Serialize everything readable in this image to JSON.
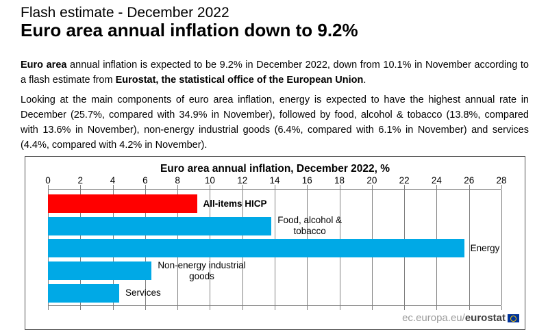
{
  "page": {
    "kicker": "Flash estimate - December 2022",
    "headline": "Euro area annual inflation down to 9.2%",
    "para1_lead_bold": "Euro area",
    "para1_mid": " annual inflation is expected to be 9.2% in December 2022, down from 10.1% in November according to a flash estimate from ",
    "para1_org_bold": "Eurostat, the statistical office of the European Union",
    "para1_tail": ".",
    "para2": "Looking at the main components of euro area inflation, energy is expected to have the highest annual rate in December (25.7%, compared with 34.9% in November), followed by food, alcohol & tobacco (13.8%, compared with 13.6% in November), non-energy industrial goods (6.4%, compared with 6.1% in November) and services (4.4%, compared with 4.2% in November)."
  },
  "chart_data": {
    "type": "bar",
    "orientation": "horizontal",
    "title": "Euro area annual inflation, December 2022, %",
    "categories": [
      "All-items HICP",
      "Food, alcohol & tobacco",
      "Energy",
      "Non-energy industrial goods",
      "Services"
    ],
    "values": [
      9.2,
      13.8,
      25.7,
      6.4,
      4.4
    ],
    "series": [
      {
        "name": "All-items HICP",
        "value": 9.2,
        "color": "#ff0000",
        "label_lines": [
          "All-items HICP"
        ],
        "label_bold": true
      },
      {
        "name": "Food, alcohol & tobacco",
        "value": 13.8,
        "color": "#00a9e6",
        "label_lines": [
          "Food, alcohol &",
          "tobacco"
        ],
        "label_bold": false
      },
      {
        "name": "Energy",
        "value": 25.7,
        "color": "#00a9e6",
        "label_lines": [
          "Energy"
        ],
        "label_bold": false
      },
      {
        "name": "Non-energy industrial goods",
        "value": 6.4,
        "color": "#00a9e6",
        "label_lines": [
          "Non-energy industrial",
          "goods"
        ],
        "label_bold": false
      },
      {
        "name": "Services",
        "value": 4.4,
        "color": "#00a9e6",
        "label_lines": [
          "Services"
        ],
        "label_bold": false
      }
    ],
    "x_ticks": [
      0,
      2,
      4,
      6,
      8,
      10,
      12,
      14,
      16,
      18,
      20,
      22,
      24,
      26,
      28
    ],
    "xlim": [
      0,
      28
    ],
    "xlabel": "",
    "ylabel": "",
    "grid": true,
    "legend": "none",
    "gridline_color": "#7f7f7f",
    "highlight_color": "#ff0000",
    "bar_color": "#00a9e6"
  },
  "footer": {
    "url_prefix": "ec.europa.eu/",
    "url_brand": "eurostat",
    "eu_flag_icon": "eu-flag",
    "flag_blue": "#003399",
    "flag_star_yellow": "#ffcc00"
  }
}
